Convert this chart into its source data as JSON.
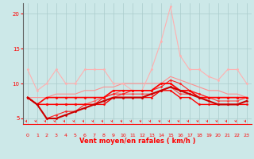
{
  "x": [
    0,
    1,
    2,
    3,
    4,
    5,
    6,
    7,
    8,
    9,
    10,
    11,
    12,
    13,
    14,
    15,
    16,
    17,
    18,
    19,
    20,
    21,
    22,
    23
  ],
  "lines": [
    {
      "y": [
        8,
        8,
        8,
        8.5,
        8.5,
        8.5,
        9,
        9,
        9.5,
        9.5,
        10,
        10,
        10,
        10,
        10,
        11,
        10.5,
        10,
        9.5,
        9,
        9,
        8.5,
        8.5,
        8
      ],
      "color": "#FF9090",
      "lw": 0.8,
      "marker": null,
      "ms": 0
    },
    {
      "y": [
        12,
        9,
        10,
        12,
        10,
        10,
        12,
        12,
        12,
        10,
        10,
        9,
        9,
        12,
        16,
        21,
        14,
        12,
        12,
        11,
        10.5,
        12,
        12,
        10
      ],
      "color": "#FFB0B0",
      "lw": 0.8,
      "marker": "D",
      "ms": 1.5
    },
    {
      "y": [
        8,
        7,
        7,
        7,
        7,
        7,
        7,
        7.5,
        8,
        8.5,
        9,
        9,
        9,
        9,
        10,
        10,
        9,
        9,
        8.5,
        8,
        8,
        8,
        8,
        8
      ],
      "color": "#FF6060",
      "lw": 0.8,
      "marker": "D",
      "ms": 1.5
    },
    {
      "y": [
        8,
        7,
        7,
        7,
        7,
        7,
        7,
        7,
        7.5,
        8,
        8.5,
        8.5,
        8.5,
        8.5,
        9,
        9.5,
        8.5,
        8.5,
        8,
        8,
        7.5,
        7.5,
        7.5,
        8
      ],
      "color": "#FF4040",
      "lw": 0.8,
      "marker": "D",
      "ms": 1.5
    },
    {
      "y": [
        8,
        7,
        5,
        5.5,
        6,
        6,
        7,
        7,
        8,
        8.5,
        8.5,
        9,
        9,
        9,
        9.5,
        10.5,
        10,
        9,
        8.5,
        8,
        8,
        8,
        8,
        8
      ],
      "color": "#FF2020",
      "lw": 0.8,
      "marker": "D",
      "ms": 1.5
    },
    {
      "y": [
        8,
        7,
        7,
        7,
        7,
        7,
        7,
        7,
        7,
        8,
        8,
        8,
        8,
        8,
        9,
        9,
        8,
        8,
        7,
        7,
        7,
        7,
        7,
        7
      ],
      "color": "#FF0000",
      "lw": 1.0,
      "marker": "D",
      "ms": 1.5
    },
    {
      "y": [
        8,
        7,
        8,
        8,
        8,
        8,
        8,
        8,
        8,
        9,
        9,
        9,
        9,
        9,
        10,
        10,
        9,
        9,
        8,
        8,
        8,
        8,
        8,
        8
      ],
      "color": "#FF0000",
      "lw": 1.2,
      "marker": "D",
      "ms": 1.5
    },
    {
      "y": [
        8,
        7,
        5,
        5,
        5.5,
        6,
        6.5,
        7,
        7.5,
        8,
        8,
        8,
        8,
        8.5,
        9,
        9.5,
        9,
        8.5,
        8,
        7.5,
        7,
        7,
        7,
        7.5
      ],
      "color": "#CC0000",
      "lw": 1.5,
      "marker": "D",
      "ms": 1.5
    }
  ],
  "xlim": [
    -0.5,
    23.5
  ],
  "ylim": [
    4.2,
    21.5
  ],
  "yticks": [
    5,
    10,
    15,
    20
  ],
  "xticks": [
    0,
    1,
    2,
    3,
    4,
    5,
    6,
    7,
    8,
    9,
    10,
    11,
    12,
    13,
    14,
    15,
    16,
    17,
    18,
    19,
    20,
    21,
    22,
    23
  ],
  "xlabel": "Vent moyen/en rafales ( km/h )",
  "bg_color": "#cce8e8",
  "grid_color": "#aacccc",
  "tick_color": "#FF0000",
  "label_color": "#FF0000",
  "axis_color": "#FF0000",
  "arrow_color": "#FF0000"
}
